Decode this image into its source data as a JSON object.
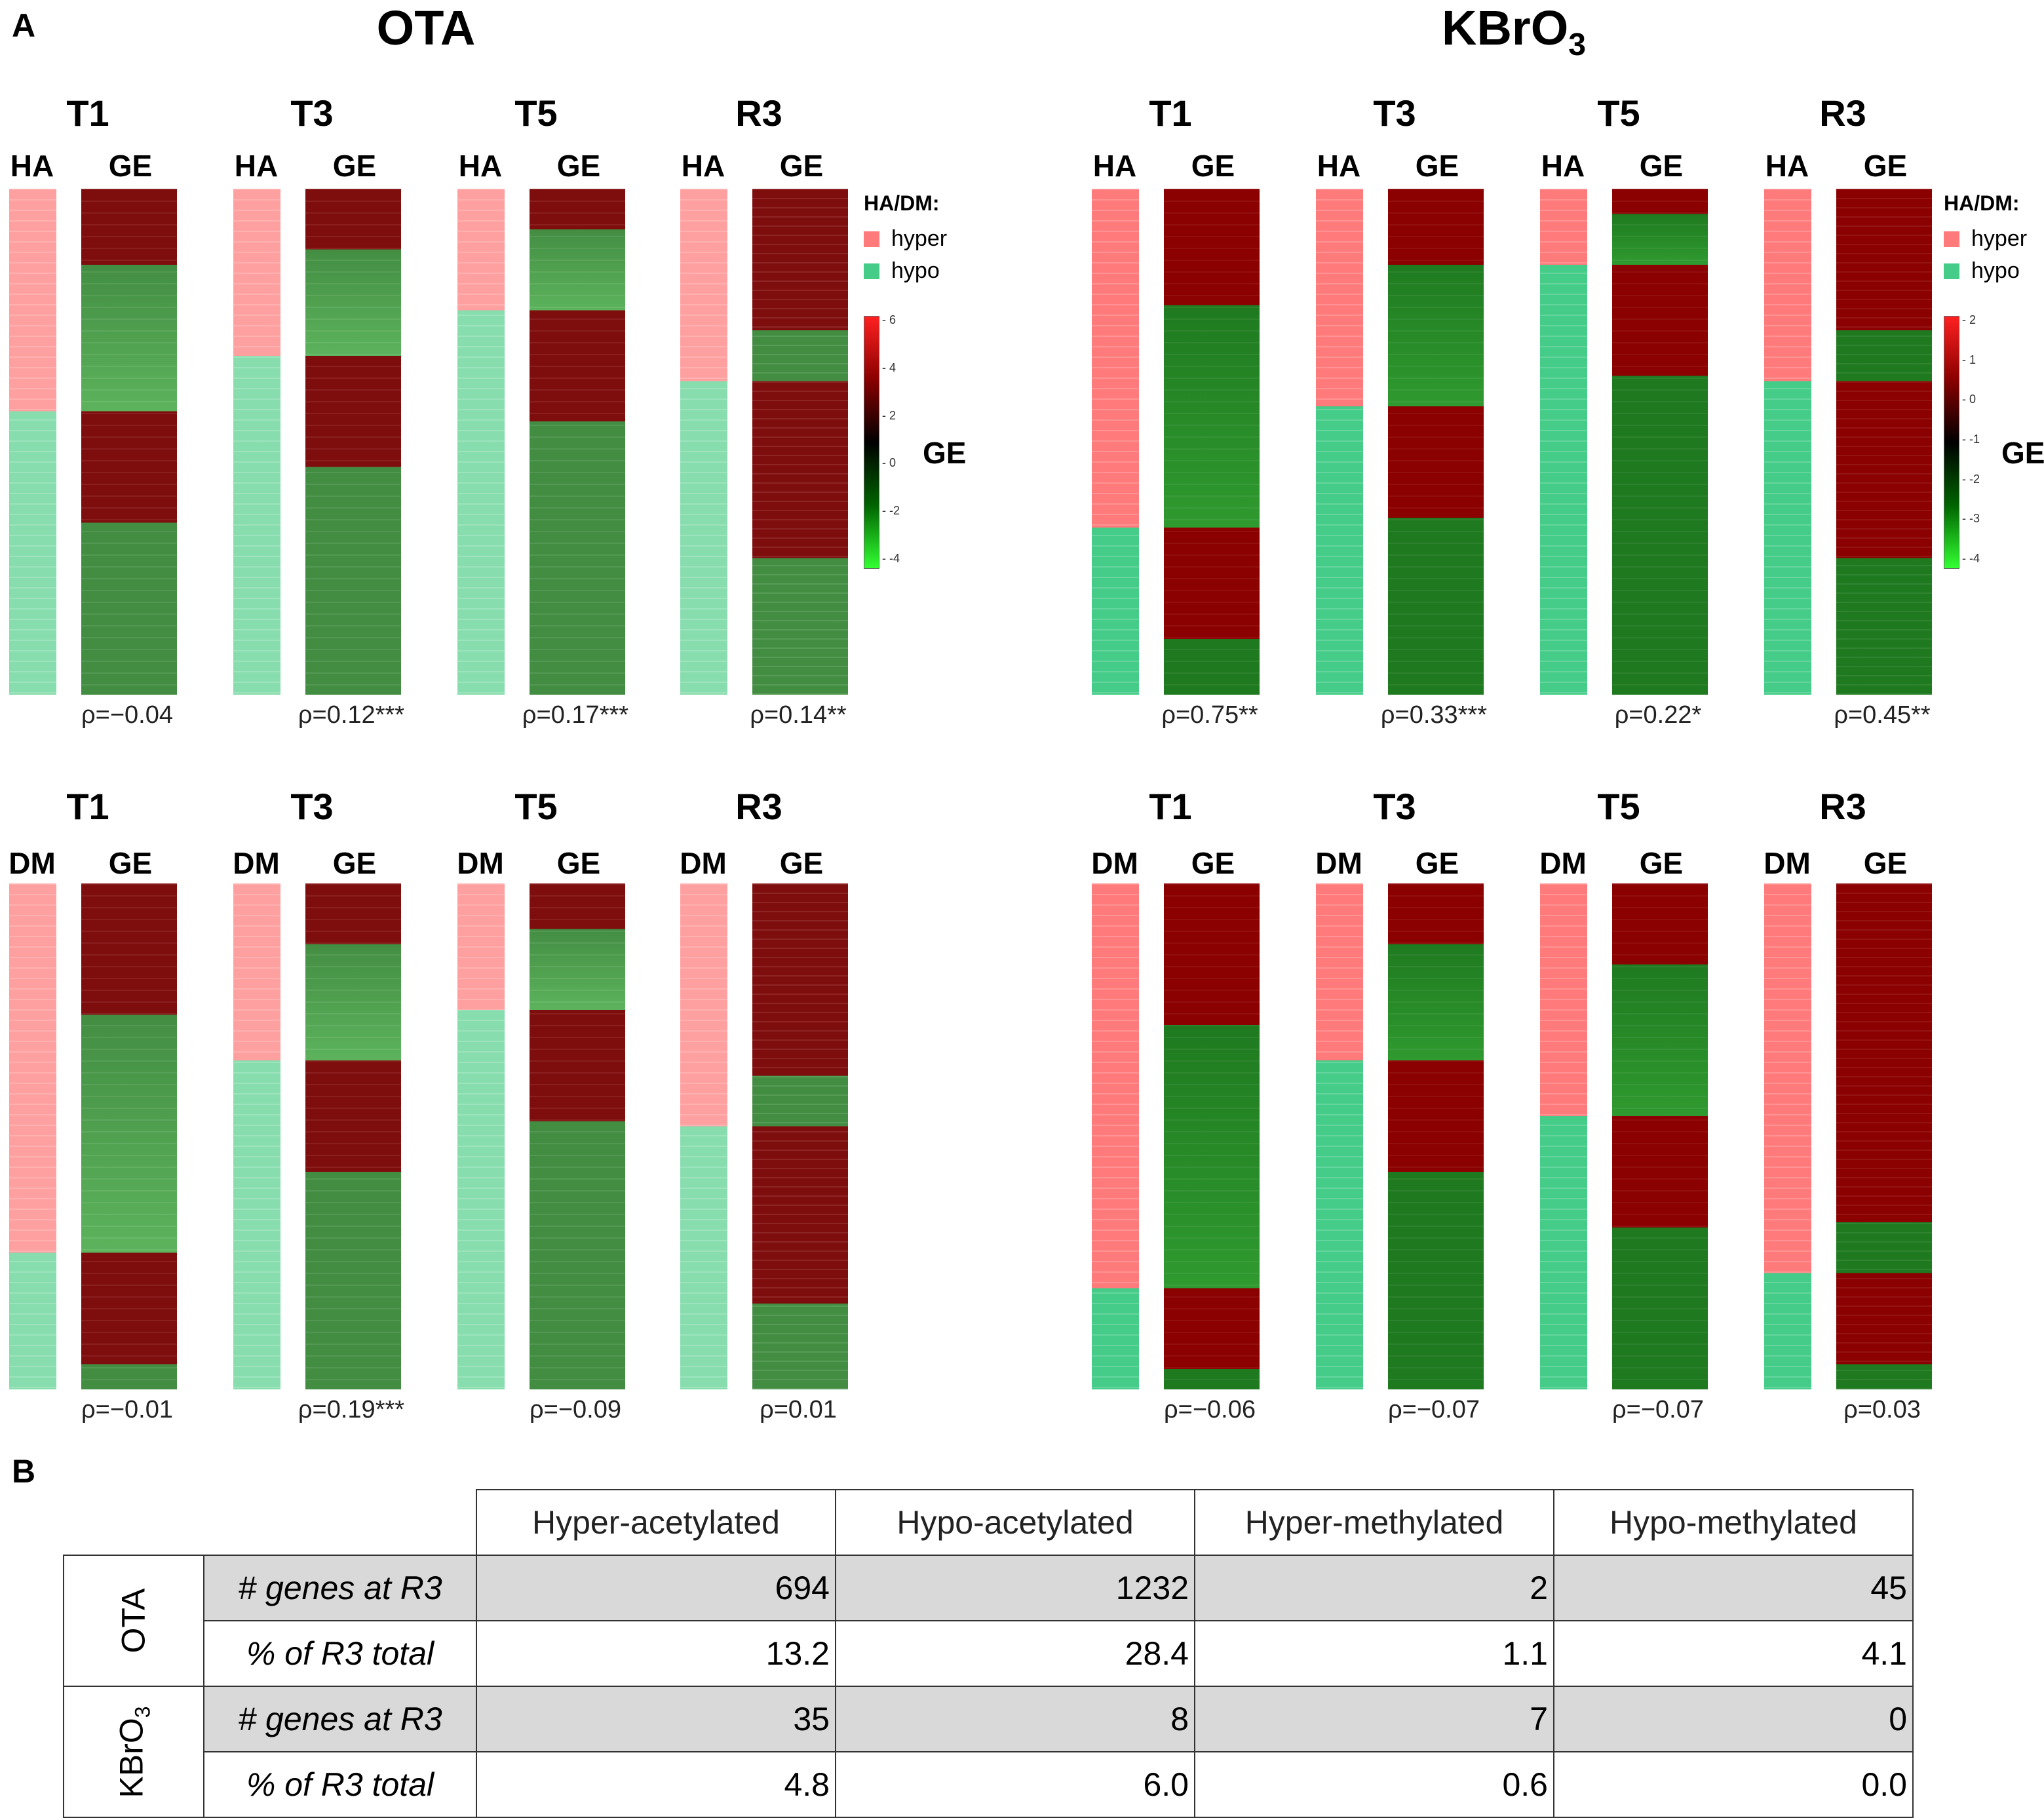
{
  "panel_a_label": "A",
  "panel_b_label": "B",
  "conditions": {
    "ota": "OTA",
    "kbro3_main": "KBrO",
    "kbro3_sub": "3"
  },
  "col_labels": {
    "ha": "HA",
    "dm": "DM",
    "ge": "GE"
  },
  "legend": {
    "title": "HA/DM:",
    "hyper": "hyper",
    "hypo": "hypo",
    "ge": "GE"
  },
  "colors": {
    "hyper": "#ff7b7b",
    "hypo": "#44cc88",
    "up": "#8b0000",
    "down": "#1f7a1f"
  },
  "colorbars": {
    "ota": [
      "6",
      "4",
      "2",
      "0",
      "-2",
      "-4"
    ],
    "kbro3": [
      "2",
      "1",
      "0",
      "-1",
      "-2",
      "-3",
      "-4"
    ]
  },
  "heatmaps": {
    "ota_ha": [
      {
        "tp": "T1",
        "rho": "ρ=−0.04",
        "hyper_frac": 0.44
      },
      {
        "tp": "T3",
        "rho": "ρ=0.12***",
        "hyper_frac": 0.33
      },
      {
        "tp": "T5",
        "rho": "ρ=0.17***",
        "hyper_frac": 0.24
      },
      {
        "tp": "R3",
        "rho": "ρ=0.14**",
        "hyper_frac": 0.38
      }
    ],
    "kbro3_ha": [
      {
        "tp": "T1",
        "rho": "ρ=0.75**",
        "hyper_frac": 0.67
      },
      {
        "tp": "T3",
        "rho": "ρ=0.33***",
        "hyper_frac": 0.43
      },
      {
        "tp": "T5",
        "rho": "ρ=0.22*",
        "hyper_frac": 0.15
      },
      {
        "tp": "R3",
        "rho": "ρ=0.45**",
        "hyper_frac": 0.38
      }
    ],
    "ota_dm": [
      {
        "tp": "T1",
        "rho": "ρ=−0.01",
        "hyper_frac": 0.73
      },
      {
        "tp": "T3",
        "rho": "ρ=0.19***",
        "hyper_frac": 0.35
      },
      {
        "tp": "T5",
        "rho": "ρ=−0.09",
        "hyper_frac": 0.25
      },
      {
        "tp": "R3",
        "rho": "ρ=0.01",
        "hyper_frac": 0.48
      }
    ],
    "kbro3_dm": [
      {
        "tp": "T1",
        "rho": "ρ=−0.06",
        "hyper_frac": 0.8
      },
      {
        "tp": "T3",
        "rho": "ρ=−0.07",
        "hyper_frac": 0.35
      },
      {
        "tp": "T5",
        "rho": "ρ=−0.07",
        "hyper_frac": 0.46
      },
      {
        "tp": "R3",
        "rho": "ρ=0.03",
        "hyper_frac": 0.77
      }
    ]
  },
  "table": {
    "headers": [
      "Hyper-acetylated",
      "Hypo-acetylated",
      "Hyper-methylated",
      "Hypo-methylated"
    ],
    "groups": [
      {
        "name": "OTA",
        "rows": [
          {
            "label": "# genes at R3",
            "values": [
              "694",
              "1232",
              "2",
              "45"
            ]
          },
          {
            "label": "% of R3 total",
            "values": [
              "13.2",
              "28.4",
              "1.1",
              "4.1"
            ]
          }
        ]
      },
      {
        "name": "KBrO3",
        "rows": [
          {
            "label": "# genes at R3",
            "values": [
              "35",
              "8",
              "7",
              "0"
            ]
          },
          {
            "label": "% of R3 total",
            "values": [
              "4.8",
              "6.0",
              "0.6",
              "0.0"
            ]
          }
        ]
      }
    ],
    "kbro3_name_main": "KBrO",
    "kbro3_name_sub": "3"
  }
}
